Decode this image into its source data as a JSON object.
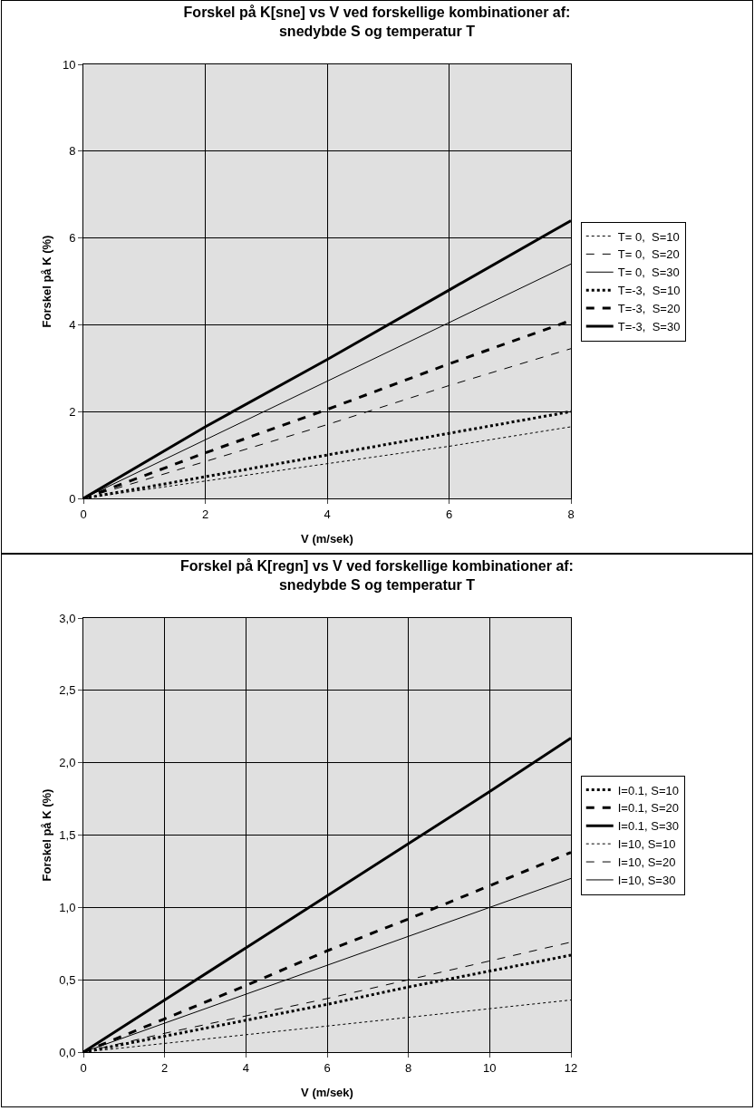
{
  "chart_data": [
    {
      "type": "line",
      "title": "Forskel på K[sne] vs V ved forskellige kombinationer af:\nsnedybde S og temperatur T",
      "xlabel": "V (m/sek)",
      "ylabel": "Forskel på K (%)",
      "x": [
        0,
        2,
        4,
        6,
        8
      ],
      "series": [
        {
          "name": "T= 0,  S=10",
          "color": "#000000",
          "line_style": "dotted",
          "values": [
            0,
            0.4,
            0.8,
            1.2,
            1.65
          ]
        },
        {
          "name": "T= 0,  S=20",
          "color": "#000000",
          "line_style": "dashed",
          "values": [
            0,
            0.85,
            1.7,
            2.6,
            3.45
          ]
        },
        {
          "name": "T= 0,  S=30",
          "color": "#000000",
          "line_style": "solid",
          "values": [
            0,
            1.35,
            2.7,
            4.05,
            5.4
          ]
        },
        {
          "name": "T=-3,  S=10",
          "color": "#000000",
          "line_style": "dotted",
          "values": [
            0,
            0.5,
            1.0,
            1.5,
            2.0
          ]
        },
        {
          "name": "T=-3,  S=20",
          "color": "#000000",
          "line_style": "dashed",
          "values": [
            0,
            1.05,
            2.05,
            3.1,
            4.1
          ]
        },
        {
          "name": "T=-3,  S=30",
          "color": "#000000",
          "line_style": "solid",
          "values": [
            0,
            1.65,
            3.2,
            4.8,
            6.4
          ]
        }
      ],
      "xlim": [
        0,
        8
      ],
      "xticks": [
        0,
        2,
        4,
        6,
        8
      ],
      "ylim": [
        0,
        10
      ],
      "yticks": [
        0,
        2,
        4,
        6,
        8,
        10
      ],
      "grid": true,
      "legend": "right",
      "marker": "none"
    },
    {
      "type": "line",
      "title": "Forskel på K[regn] vs V ved forskellige kombinationer af:\nsnedybde S og temperatur T",
      "xlabel": "V (m/sek)",
      "ylabel": "Forskel på K (%)",
      "x": [
        0,
        2,
        4,
        6,
        8,
        10,
        12
      ],
      "series": [
        {
          "name": "I=0.1, S=10",
          "color": "#000000",
          "line_style": "dotted",
          "values": [
            0,
            0.11,
            0.22,
            0.33,
            0.45,
            0.56,
            0.67
          ]
        },
        {
          "name": "I=0.1, S=20",
          "color": "#000000",
          "line_style": "dashed",
          "values": [
            0,
            0.23,
            0.46,
            0.7,
            0.92,
            1.15,
            1.38
          ]
        },
        {
          "name": "I=0.1, S=30",
          "color": "#000000",
          "line_style": "solid",
          "values": [
            0,
            0.36,
            0.72,
            1.08,
            1.44,
            1.8,
            2.17
          ]
        },
        {
          "name": "I=10, S=10",
          "color": "#000000",
          "line_style": "dotted",
          "values": [
            0,
            0.06,
            0.12,
            0.18,
            0.24,
            0.3,
            0.36
          ]
        },
        {
          "name": "I=10, S=20",
          "color": "#000000",
          "line_style": "dashed",
          "values": [
            0,
            0.13,
            0.25,
            0.37,
            0.5,
            0.63,
            0.76
          ]
        },
        {
          "name": "I=10, S=30",
          "color": "#000000",
          "line_style": "solid",
          "values": [
            0,
            0.2,
            0.4,
            0.6,
            0.8,
            1.0,
            1.2
          ]
        }
      ],
      "xlim": [
        0,
        12
      ],
      "xticks": [
        0,
        2,
        4,
        6,
        8,
        10,
        12
      ],
      "ylim": [
        0,
        3
      ],
      "yticks": [
        {
          "value": 0,
          "label": "0,0"
        },
        {
          "value": 0.5,
          "label": "0,5"
        },
        {
          "value": 1,
          "label": "1,0"
        },
        {
          "value": 1.5,
          "label": "1,5"
        },
        {
          "value": 2,
          "label": "2,0"
        },
        {
          "value": 2.5,
          "label": "2,5"
        },
        {
          "value": 3,
          "label": "3,0"
        }
      ],
      "grid": true,
      "legend": "right",
      "marker": "none"
    }
  ]
}
